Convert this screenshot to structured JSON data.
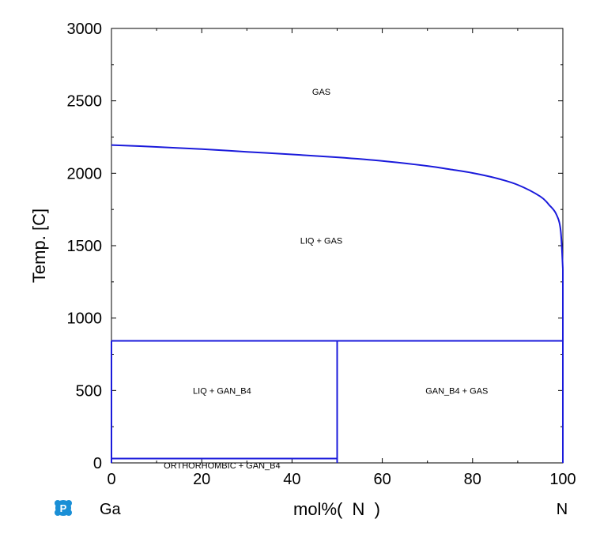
{
  "chart_data": {
    "type": "line",
    "title": "",
    "xlabel": "mol%(  N  )",
    "ylabel": "Temp.  [C]",
    "xlim": [
      0,
      100
    ],
    "ylim": [
      0,
      3000
    ],
    "x_ticks": [
      "0",
      "20",
      "40",
      "60",
      "80",
      "100"
    ],
    "y_ticks": [
      "0",
      "500",
      "1000",
      "1500",
      "2000",
      "2500",
      "3000"
    ],
    "x_tick_values": [
      0,
      20,
      40,
      60,
      80,
      100
    ],
    "y_tick_values": [
      0,
      500,
      1000,
      1500,
      2000,
      2500,
      3000
    ],
    "grid": false,
    "line_color": "#1a1adb",
    "component_left": "Ga",
    "component_right": "N",
    "series": [
      {
        "points": [
          [
            0,
            2195
          ],
          [
            10,
            2182
          ],
          [
            20,
            2167
          ],
          [
            30,
            2148
          ],
          [
            40,
            2130
          ],
          [
            50,
            2110
          ],
          [
            60,
            2085
          ],
          [
            70,
            2050
          ],
          [
            75,
            2027
          ],
          [
            80,
            2002
          ],
          [
            85,
            1968
          ],
          [
            90,
            1920
          ],
          [
            95,
            1840
          ],
          [
            97,
            1780
          ],
          [
            98.5,
            1720
          ],
          [
            99.5,
            1610
          ],
          [
            100,
            1340
          ]
        ]
      },
      {
        "points": [
          [
            0,
            843
          ],
          [
            100,
            843
          ]
        ]
      },
      {
        "points": [
          [
            0,
            30
          ],
          [
            50,
            30
          ]
        ]
      },
      {
        "points": [
          [
            50,
            0
          ],
          [
            50,
            843
          ]
        ]
      },
      {
        "points": [
          [
            0,
            0
          ],
          [
            0,
            843
          ]
        ]
      },
      {
        "points": [
          [
            100,
            0
          ],
          [
            100,
            1340
          ]
        ]
      }
    ],
    "regions": [
      {
        "label": "GAS",
        "x": 46.5,
        "y": 2565
      },
      {
        "label": "LIQ + GAS",
        "x": 46.5,
        "y": 1535
      },
      {
        "label": "LIQ + GAN_B4",
        "x": 24.5,
        "y": 500
      },
      {
        "label": "GAN_B4 + GAS",
        "x": 76.5,
        "y": 500
      },
      {
        "label": "ORTHORHOMBIC + GAN_B4",
        "x": 24.5,
        "y": -15
      }
    ]
  },
  "logo": {
    "name": "pandat-logo-icon",
    "color": "#1a8fd6"
  }
}
